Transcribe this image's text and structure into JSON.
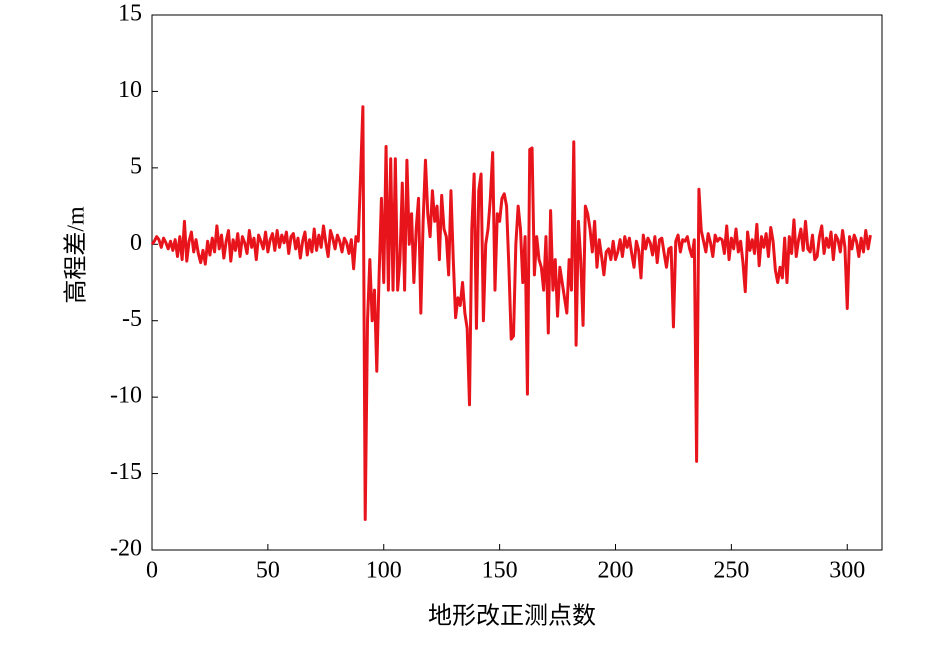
{
  "chart_data": {
    "type": "line",
    "xlabel": "地形改正测点数",
    "ylabel": "高程差/m",
    "xlim": [
      0,
      315
    ],
    "ylim": [
      -20,
      15
    ],
    "xticks": [
      0,
      50,
      100,
      150,
      200,
      250,
      300
    ],
    "yticks": [
      15,
      10,
      5,
      0,
      -5,
      -10,
      -15,
      -20
    ],
    "grid": false,
    "x": [
      0,
      1,
      2,
      3,
      4,
      5,
      6,
      7,
      8,
      9,
      10,
      11,
      12,
      13,
      14,
      15,
      16,
      17,
      18,
      19,
      20,
      21,
      22,
      23,
      24,
      25,
      26,
      27,
      28,
      29,
      30,
      31,
      32,
      33,
      34,
      35,
      36,
      37,
      38,
      39,
      40,
      41,
      42,
      43,
      44,
      45,
      46,
      47,
      48,
      49,
      50,
      51,
      52,
      53,
      54,
      55,
      56,
      57,
      58,
      59,
      60,
      61,
      62,
      63,
      64,
      65,
      66,
      67,
      68,
      69,
      70,
      71,
      72,
      73,
      74,
      75,
      76,
      77,
      78,
      79,
      80,
      81,
      82,
      83,
      84,
      85,
      86,
      87,
      88,
      89,
      90,
      91,
      92,
      93,
      94,
      95,
      96,
      97,
      98,
      99,
      100,
      101,
      102,
      103,
      104,
      105,
      106,
      107,
      108,
      109,
      110,
      111,
      112,
      113,
      114,
      115,
      116,
      117,
      118,
      119,
      120,
      121,
      122,
      123,
      124,
      125,
      126,
      127,
      128,
      129,
      130,
      131,
      132,
      133,
      134,
      135,
      136,
      137,
      138,
      139,
      140,
      141,
      142,
      143,
      144,
      145,
      146,
      147,
      148,
      149,
      150,
      151,
      152,
      153,
      154,
      155,
      156,
      157,
      158,
      159,
      160,
      161,
      162,
      163,
      164,
      165,
      166,
      167,
      168,
      169,
      170,
      171,
      172,
      173,
      174,
      175,
      176,
      177,
      178,
      179,
      180,
      181,
      182,
      183,
      184,
      185,
      186,
      187,
      188,
      189,
      190,
      191,
      192,
      193,
      194,
      195,
      196,
      197,
      198,
      199,
      200,
      201,
      202,
      203,
      204,
      205,
      206,
      207,
      208,
      209,
      210,
      211,
      212,
      213,
      214,
      215,
      216,
      217,
      218,
      219,
      220,
      221,
      222,
      223,
      224,
      225,
      226,
      227,
      228,
      229,
      230,
      231,
      232,
      233,
      234,
      235,
      236,
      237,
      238,
      239,
      240,
      241,
      242,
      243,
      244,
      245,
      246,
      247,
      248,
      249,
      250,
      251,
      252,
      253,
      254,
      255,
      256,
      257,
      258,
      259,
      260,
      261,
      262,
      263,
      264,
      265,
      266,
      267,
      268,
      269,
      270,
      271,
      272,
      273,
      274,
      275,
      276,
      277,
      278,
      279,
      280,
      281,
      282,
      283,
      284,
      285,
      286,
      287,
      288,
      289,
      290,
      291,
      292,
      293,
      294,
      295,
      296,
      297,
      298,
      299,
      300,
      301,
      302,
      303,
      304,
      305,
      306,
      307,
      308,
      309,
      310
    ],
    "series": [
      {
        "color": "#e8141c",
        "values": [
          0,
          0.2,
          0.5,
          0.3,
          -0.2,
          0.4,
          0.1,
          -0.3,
          0.2,
          -0.4,
          0.3,
          -0.8,
          0.5,
          -1,
          1.5,
          -1.1,
          0.2,
          0.8,
          -0.5,
          0.3,
          -0.6,
          -1.2,
          -0.4,
          -1.3,
          0.2,
          -0.7,
          0.4,
          -0.5,
          1.2,
          -0.3,
          0.6,
          -0.9,
          0.2,
          0.9,
          -1.1,
          0.3,
          -0.4,
          0.7,
          -0.8,
          0.5,
          0.1,
          -0.6,
          0.9,
          -0.2,
          0.4,
          -1,
          0.6,
          0.2,
          -0.3,
          0.8,
          -0.5,
          0.3,
          0.7,
          -0.4,
          0.9,
          -0.2,
          0.6,
          0.1,
          0.8,
          -0.6,
          0.5,
          0.7,
          -0.3,
          0.4,
          -0.9,
          0.2,
          0.8,
          -0.7,
          0.3,
          -0.5,
          1.0,
          -0.4,
          0.6,
          -0.2,
          1.2,
          0.1,
          -0.8,
          0.9,
          0.4,
          -0.3,
          0.6,
          0.2,
          -0.5,
          0.4,
          0.1,
          -0.6,
          0.3,
          -1.6,
          0.5,
          0.2,
          4.5,
          9,
          -18,
          -5,
          -1,
          -5,
          -3,
          -8.3,
          -2,
          3,
          -2.5,
          6.4,
          -3,
          5.6,
          -3,
          5.6,
          -3,
          -1,
          4,
          -3,
          5.5,
          0,
          2,
          -2.5,
          1,
          3,
          -4.5,
          1.5,
          5.5,
          2,
          0.5,
          3.5,
          1.5,
          2.5,
          -1,
          3.2,
          1,
          0.5,
          -2,
          3.5,
          -1,
          -4.8,
          -3.5,
          -4,
          -2.5,
          -4.5,
          -5.5,
          -10.5,
          1,
          4.6,
          -5.5,
          3.5,
          4.6,
          -5,
          0,
          1,
          3,
          6,
          -3,
          2,
          1.5,
          3,
          3.3,
          2.5,
          -1.5,
          -6.2,
          -6,
          0,
          2.5,
          1,
          -2.5,
          0.5,
          -9.8,
          6.2,
          6.3,
          -2,
          0.5,
          -1,
          -1.5,
          -3,
          0.5,
          -5.8,
          2.2,
          -3,
          -1,
          -4.7,
          -1.5,
          -2.5,
          -3.5,
          -4.5,
          -1,
          -3,
          6.7,
          -6.6,
          1.5,
          -1,
          -5.3,
          2.5,
          2,
          1,
          -0.5,
          1.5,
          -1.5,
          0.3,
          -0.8,
          -2,
          -0.5,
          -0.3,
          -1,
          0.2,
          -1,
          -0.5,
          0.3,
          -0.8,
          0.5,
          -0.2,
          0.4,
          -0.6,
          -1.5,
          0.2,
          -0.4,
          -2.2,
          0.6,
          -0.3,
          0.4,
          0.1,
          -0.7,
          0.5,
          -1.2,
          0.3,
          0.4,
          -0.6,
          -1.5,
          -0.3,
          -0.2,
          -5.4,
          0.2,
          0.6,
          -0.5,
          0.3,
          0.2,
          0.5,
          -0.3,
          -0.8,
          0.3,
          -14.2,
          3.6,
          0.9,
          0.2,
          -0.5,
          0.7,
          0.1,
          -0.8,
          0.6,
          0.2,
          0.4,
          0.3,
          -0.6,
          1.2,
          -1,
          0.4,
          -0.3,
          1.0,
          -0.5,
          0.2,
          -1.2,
          -3.1,
          0.8,
          -0.4,
          0.3,
          -0.6,
          1.3,
          -1.4,
          0.5,
          -0.2,
          0.7,
          -0.8,
          1.1,
          0.2,
          -1.7,
          -2.5,
          -1.5,
          -2.2,
          0.4,
          -2.5,
          0.5,
          -0.6,
          1.6,
          -0.8,
          0.3,
          1.0,
          -0.4,
          1.5,
          -0.3,
          -0.5,
          0.6,
          -1,
          -0.8,
          0.5,
          1.2,
          -0.6,
          0.4,
          -0.2,
          0.8,
          -1.0,
          0.6,
          0.3,
          -0.5,
          0.9,
          -0.2,
          -4.2,
          0.5,
          -0.3,
          0.6,
          0.2,
          -0.8,
          0.4,
          -0.5,
          0.9,
          -0.3,
          0.6
        ]
      }
    ]
  }
}
